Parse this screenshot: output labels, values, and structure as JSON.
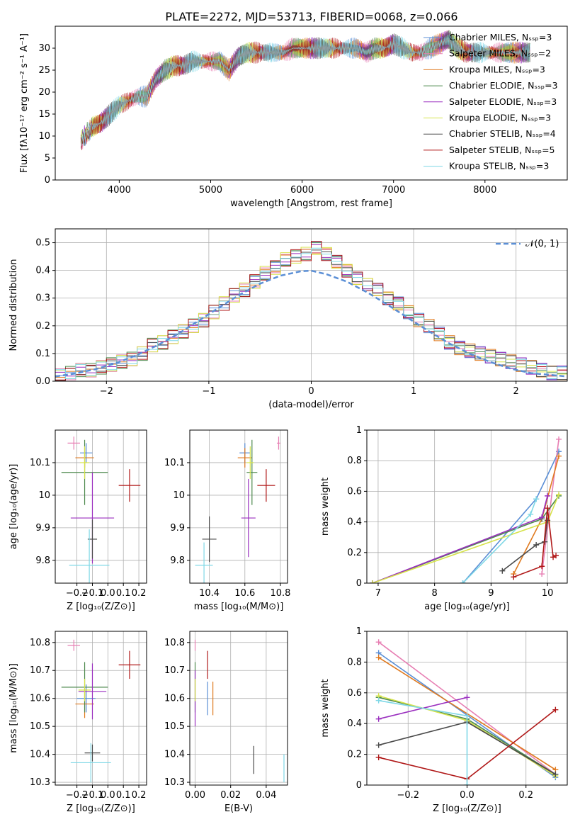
{
  "figure": {
    "title": "PLATE=2272, MJD=53713, FIBERID=0068, z=0.066"
  },
  "legend_models": [
    {
      "label": "Chabrier MILES, Nₛₛₚ=3",
      "color": "#5b8fd6"
    },
    {
      "label": "Salpeter MILES, Nₛₛₚ=2",
      "color": "#e77fb3"
    },
    {
      "label": "Kroupa MILES, Nₛₛₚ=3",
      "color": "#e07a1f"
    },
    {
      "label": "Chabrier ELODIE, Nₛₛₚ=3",
      "color": "#4e8a4e"
    },
    {
      "label": "Salpeter ELODIE, Nₛₛₚ=3",
      "color": "#9a2fbf"
    },
    {
      "label": "Kroupa ELODIE, Nₛₛₚ=3",
      "color": "#d6e34a"
    },
    {
      "label": "Chabrier STELIB, Nₛₛₚ=4",
      "color": "#4a4a4a"
    },
    {
      "label": "Salpeter STELIB, Nₛₛₚ=5",
      "color": "#b01818"
    },
    {
      "label": "Kroupa STELIB, Nₛₛₚ=3",
      "color": "#7fd8e6"
    }
  ],
  "chart_data": [
    {
      "type": "line",
      "panel": "spectrum",
      "xlabel": "wavelength [Angstrom, rest frame]",
      "ylabel": "Flux [fλ10⁻¹⁷ erg cm⁻² s⁻¹ A⁻¹]",
      "xlim": [
        3300,
        8900
      ],
      "ylim": [
        0,
        35
      ],
      "xticks": [
        4000,
        5000,
        6000,
        7000,
        8000
      ],
      "yticks": [
        0,
        5,
        10,
        15,
        20,
        25,
        30
      ],
      "x": [
        3580,
        3700,
        3800,
        3900,
        4000,
        4100,
        4200,
        4300,
        4400,
        4500,
        4600,
        4700,
        4800,
        4900,
        5000,
        5100,
        5200,
        5300,
        5400,
        5500,
        5600,
        5700,
        5800,
        5900,
        6000,
        6100,
        6200,
        6300,
        6400,
        6500,
        6600,
        6700,
        6800,
        6900,
        7000,
        7100,
        7200,
        7300,
        7400,
        7500,
        7600,
        7700,
        7800,
        7900,
        8000,
        8100,
        8200,
        8300,
        8400,
        8500
      ],
      "y": [
        9,
        12,
        13,
        15,
        17,
        18,
        19,
        19,
        23,
        25,
        26,
        26,
        27,
        27,
        27,
        27,
        25,
        28,
        29,
        29,
        29,
        29,
        29,
        30,
        30,
        30,
        30,
        30,
        30,
        30,
        30,
        29,
        30,
        30,
        31,
        30,
        29,
        29,
        30,
        31,
        32,
        30,
        29,
        29,
        29,
        29,
        29,
        29,
        29,
        29
      ],
      "grid": false,
      "legend_placement": "top-right"
    },
    {
      "type": "line",
      "panel": "residuals",
      "xlabel": "(data-model)/error",
      "ylabel": "Normed distribution",
      "xlim": [
        -2.5,
        2.5
      ],
      "ylim": [
        0,
        0.55
      ],
      "xticks": [
        -2,
        -1,
        0,
        1,
        2
      ],
      "xtick_labels": [
        "−2",
        "−1",
        "0",
        "1",
        "2"
      ],
      "yticks": [
        0,
        0.1,
        0.2,
        0.3,
        0.4,
        0.5
      ],
      "ytick_labels": [
        "0.0",
        "0.1",
        "0.2",
        "0.3",
        "0.4",
        "0.5"
      ],
      "series": [
        {
          "name": "1(0, 1)",
          "values": [
            0.017,
            0.028,
            0.044,
            0.066,
            0.095,
            0.13,
            0.171,
            0.218,
            0.266,
            0.312,
            0.352,
            0.381,
            0.397,
            0.399,
            0.386,
            0.359,
            0.32,
            0.275,
            0.227,
            0.18,
            0.136,
            0.099,
            0.069,
            0.045,
            0.029,
            0.017
          ]
        }
      ],
      "x": [
        -2.5,
        -2.3,
        -2.1,
        -1.9,
        -1.7,
        -1.5,
        -1.3,
        -1.1,
        -0.9,
        -0.7,
        -0.5,
        -0.3,
        -0.1,
        0.0,
        0.15,
        0.35,
        0.55,
        0.75,
        0.95,
        1.15,
        1.35,
        1.55,
        1.75,
        1.95,
        2.15,
        2.5
      ],
      "histogram_bins": [
        -2.5,
        -2.4,
        -2.3,
        -2.2,
        -2.1,
        -2.0,
        -1.9,
        -1.8,
        -1.7,
        -1.6,
        -1.5,
        -1.4,
        -1.3,
        -1.2,
        -1.1,
        -1.0,
        -0.9,
        -0.8,
        -0.7,
        -0.6,
        -0.5,
        -0.4,
        -0.3,
        -0.2,
        -0.1,
        0.0,
        0.1,
        0.2,
        0.3,
        0.4,
        0.5,
        0.6,
        0.7,
        0.8,
        0.9,
        1.0,
        1.1,
        1.2,
        1.3,
        1.4,
        1.5,
        1.6,
        1.7,
        1.8,
        1.9,
        2.0,
        2.1,
        2.2,
        2.3,
        2.4,
        2.5
      ],
      "histogram_values": [
        0.02,
        0.03,
        0.04,
        0.04,
        0.05,
        0.06,
        0.07,
        0.08,
        0.1,
        0.13,
        0.14,
        0.16,
        0.18,
        0.2,
        0.22,
        0.25,
        0.28,
        0.31,
        0.33,
        0.36,
        0.39,
        0.41,
        0.44,
        0.45,
        0.46,
        0.48,
        0.46,
        0.43,
        0.4,
        0.37,
        0.35,
        0.33,
        0.3,
        0.28,
        0.25,
        0.22,
        0.2,
        0.17,
        0.14,
        0.12,
        0.11,
        0.1,
        0.09,
        0.08,
        0.07,
        0.06,
        0.05,
        0.04,
        0.03,
        0.03
      ],
      "grid": true,
      "legend_placement": "top-right"
    },
    {
      "type": "scatter",
      "panel": "Z-vs-age",
      "xlabel": "Z [log₁₀(Z/Z⊙)]",
      "ylabel": "age  [log₁₀(age/yr)]",
      "xlim": [
        -0.34,
        0.25
      ],
      "ylim": [
        9.73,
        10.2
      ],
      "xticks": [
        -0.2,
        -0.1,
        0.0,
        0.1,
        0.2
      ],
      "xtick_labels": [
        "−0.2",
        "−0.1",
        "0.0",
        "0.1",
        "0.2"
      ],
      "yticks": [
        9.8,
        9.9,
        10.0,
        10.1
      ],
      "points": [
        {
          "x": -0.14,
          "y": 10.13,
          "xerr": 0.04,
          "yerr": 0.03,
          "c": 0
        },
        {
          "x": -0.22,
          "y": 10.16,
          "xerr": 0.04,
          "yerr": 0.02,
          "c": 1
        },
        {
          "x": -0.15,
          "y": 10.115,
          "xerr": 0.06,
          "yerr": 0.03,
          "c": 2
        },
        {
          "x": -0.15,
          "y": 10.07,
          "xerr": 0.15,
          "yerr": 0.1,
          "c": 3
        },
        {
          "x": -0.1,
          "y": 9.93,
          "xerr": 0.14,
          "yerr": 0.14,
          "c": 4
        },
        {
          "x": -0.15,
          "y": 10.1,
          "xerr": 0.03,
          "yerr": 0.05,
          "c": 5
        },
        {
          "x": -0.1,
          "y": 9.865,
          "xerr": 0.03,
          "yerr": 0.06,
          "c": 6
        },
        {
          "x": 0.14,
          "y": 10.03,
          "xerr": 0.07,
          "yerr": 0.05,
          "c": 7
        },
        {
          "x": -0.12,
          "y": 9.785,
          "xerr": 0.13,
          "yerr": 0.11,
          "c": 8
        }
      ],
      "grid": true
    },
    {
      "type": "scatter",
      "panel": "mass-vs-age",
      "xlabel": "mass [log₁₀(M/M⊙)]",
      "ylabel": "",
      "xlim": [
        10.29,
        10.84
      ],
      "ylim": [
        9.73,
        10.2
      ],
      "xticks": [
        10.4,
        10.6,
        10.8
      ],
      "yticks": [
        9.8,
        9.9,
        10.0,
        10.1
      ],
      "points": [
        {
          "x": 10.6,
          "y": 10.13,
          "xerr": 0.03,
          "yerr": 0.03,
          "c": 0
        },
        {
          "x": 10.79,
          "y": 10.16,
          "xerr": 0.01,
          "yerr": 0.02,
          "c": 1
        },
        {
          "x": 10.6,
          "y": 10.115,
          "xerr": 0.04,
          "yerr": 0.03,
          "c": 2
        },
        {
          "x": 10.64,
          "y": 10.07,
          "xerr": 0.03,
          "yerr": 0.1,
          "c": 3
        },
        {
          "x": 10.62,
          "y": 9.93,
          "xerr": 0.04,
          "yerr": 0.12,
          "c": 4
        },
        {
          "x": 10.63,
          "y": 10.1,
          "xerr": 0.02,
          "yerr": 0.05,
          "c": 5
        },
        {
          "x": 10.4,
          "y": 9.865,
          "xerr": 0.04,
          "yerr": 0.07,
          "c": 6
        },
        {
          "x": 10.72,
          "y": 10.03,
          "xerr": 0.05,
          "yerr": 0.05,
          "c": 7
        },
        {
          "x": 10.37,
          "y": 9.785,
          "xerr": 0.05,
          "yerr": 0.07,
          "c": 8
        }
      ],
      "grid": true
    },
    {
      "type": "line",
      "panel": "age-vs-weight",
      "xlabel": "age  [log₁₀(age/yr)]",
      "ylabel": "mass weight",
      "xlim": [
        6.8,
        10.35
      ],
      "ylim": [
        0,
        1
      ],
      "xticks": [
        7,
        8,
        9,
        10
      ],
      "yticks": [
        0,
        0.2,
        0.4,
        0.6,
        0.8,
        1.0
      ],
      "series": [
        {
          "name": "",
          "c": 0,
          "x": [
            8.5,
            9.8,
            10.2
          ],
          "y": [
            0.0,
            0.55,
            0.86
          ]
        },
        {
          "name": "",
          "c": 1,
          "x": [
            9.9,
            10.2
          ],
          "y": [
            0.06,
            0.94
          ]
        },
        {
          "name": "",
          "c": 2,
          "x": [
            9.4,
            9.9,
            10.2
          ],
          "y": [
            0.06,
            0.42,
            0.83
          ]
        },
        {
          "name": "",
          "c": 3,
          "x": [
            6.9,
            9.9,
            10.2
          ],
          "y": [
            0.0,
            0.42,
            0.57
          ]
        },
        {
          "name": "",
          "c": 4,
          "x": [
            6.9,
            9.9,
            10.0
          ],
          "y": [
            0.0,
            0.43,
            0.57
          ]
        },
        {
          "name": "",
          "c": 5,
          "x": [
            6.9,
            10.0,
            10.2
          ],
          "y": [
            0.0,
            0.4,
            0.58
          ]
        },
        {
          "name": "",
          "c": 6,
          "x": [
            9.2,
            9.8,
            9.95,
            10.0
          ],
          "y": [
            0.08,
            0.25,
            0.27,
            0.41
          ]
        },
        {
          "name": "",
          "c": 7,
          "x": [
            9.4,
            9.9,
            10.0,
            10.1,
            10.15
          ],
          "y": [
            0.04,
            0.11,
            0.49,
            0.17,
            0.18
          ]
        },
        {
          "name": "",
          "c": 8,
          "x": [
            8.5,
            9.7,
            9.8
          ],
          "y": [
            0.0,
            0.45,
            0.55
          ]
        }
      ],
      "grid": true
    },
    {
      "type": "scatter",
      "panel": "Z-vs-mass",
      "xlabel": "Z [log₁₀(Z/Z⊙)]",
      "ylabel": "mass [log₁₀(M/M⊙)]",
      "xlim": [
        -0.34,
        0.25
      ],
      "ylim": [
        10.29,
        10.84
      ],
      "xticks": [
        -0.2,
        -0.1,
        0.0,
        0.1,
        0.2
      ],
      "xtick_labels": [
        "−0.2",
        "−0.1",
        "0.0",
        "0.1",
        "0.2"
      ],
      "yticks": [
        10.3,
        10.4,
        10.5,
        10.6,
        10.7,
        10.8
      ],
      "points": [
        {
          "x": -0.14,
          "y": 10.6,
          "xerr": 0.06,
          "yerr": 0.05,
          "c": 0
        },
        {
          "x": -0.22,
          "y": 10.79,
          "xerr": 0.04,
          "yerr": 0.02,
          "c": 1
        },
        {
          "x": -0.15,
          "y": 10.58,
          "xerr": 0.06,
          "yerr": 0.05,
          "c": 2
        },
        {
          "x": -0.15,
          "y": 10.64,
          "xerr": 0.15,
          "yerr": 0.09,
          "c": 3
        },
        {
          "x": -0.1,
          "y": 10.625,
          "xerr": 0.09,
          "yerr": 0.1,
          "c": 4
        },
        {
          "x": -0.15,
          "y": 10.63,
          "xerr": 0.04,
          "yerr": 0.04,
          "c": 5
        },
        {
          "x": -0.1,
          "y": 10.405,
          "xerr": 0.05,
          "yerr": 0.03,
          "c": 6
        },
        {
          "x": 0.14,
          "y": 10.72,
          "xerr": 0.07,
          "yerr": 0.05,
          "c": 7
        },
        {
          "x": -0.11,
          "y": 10.37,
          "xerr": 0.13,
          "yerr": 0.07,
          "c": 8
        }
      ],
      "grid": true
    },
    {
      "type": "scatter",
      "panel": "EBV-vs-mass",
      "xlabel": "E(B-V)",
      "ylabel": "",
      "xlim": [
        -0.003,
        0.052
      ],
      "ylim": [
        10.29,
        10.84
      ],
      "xticks": [
        0.0,
        0.02,
        0.04
      ],
      "xtick_labels": [
        "0.00",
        "0.02",
        "0.04"
      ],
      "yticks": [
        10.3,
        10.4,
        10.5,
        10.6,
        10.7,
        10.8
      ],
      "points": [
        {
          "x": 0.007,
          "y": 10.6,
          "xerr": 0,
          "yerr": 0.06,
          "c": 0
        },
        {
          "x": 0.0,
          "y": 10.79,
          "xerr": 0,
          "yerr": 0.02,
          "c": 1
        },
        {
          "x": 0.01,
          "y": 10.6,
          "xerr": 0,
          "yerr": 0.06,
          "c": 2
        },
        {
          "x": 0.0,
          "y": 10.64,
          "xerr": 0,
          "yerr": 0.09,
          "c": 3
        },
        {
          "x": 0.0,
          "y": 10.6,
          "xerr": 0,
          "yerr": 0.1,
          "c": 4
        },
        {
          "x": 0.0,
          "y": 10.63,
          "xerr": 0,
          "yerr": 0.04,
          "c": 5
        },
        {
          "x": 0.033,
          "y": 10.38,
          "xerr": 0,
          "yerr": 0.05,
          "c": 6
        },
        {
          "x": 0.007,
          "y": 10.72,
          "xerr": 0,
          "yerr": 0.05,
          "c": 7
        },
        {
          "x": 0.05,
          "y": 10.35,
          "xerr": 0,
          "yerr": 0.05,
          "c": 8
        }
      ],
      "grid": true
    },
    {
      "type": "line",
      "panel": "Z-vs-weight",
      "xlabel": "Z [log₁₀(Z/Z⊙)]",
      "ylabel": "mass weight",
      "xlim": [
        -0.34,
        0.34
      ],
      "ylim": [
        0,
        1
      ],
      "xticks": [
        -0.2,
        0.0,
        0.2
      ],
      "xtick_labels": [
        "−0.2",
        "0.0",
        "0.2"
      ],
      "yticks": [
        0,
        0.2,
        0.4,
        0.6,
        0.8,
        1.0
      ],
      "series": [
        {
          "name": "",
          "c": 0,
          "x": [
            -0.3,
            0.3
          ],
          "y": [
            0.86,
            0.05
          ]
        },
        {
          "name": "",
          "c": 1,
          "x": [
            -0.3,
            0.3
          ],
          "y": [
            0.93,
            0.07
          ]
        },
        {
          "name": "",
          "c": 2,
          "x": [
            -0.3,
            0.3
          ],
          "y": [
            0.83,
            0.1
          ]
        },
        {
          "name": "",
          "c": 3,
          "x": [
            -0.3,
            0.0,
            0.3
          ],
          "y": [
            0.57,
            0.43,
            0.07
          ]
        },
        {
          "name": "",
          "c": 4,
          "x": [
            -0.3,
            0.0
          ],
          "y": [
            0.43,
            0.57
          ]
        },
        {
          "name": "",
          "c": 5,
          "x": [
            -0.3,
            0.0,
            0.3
          ],
          "y": [
            0.58,
            0.42,
            0.06
          ]
        },
        {
          "name": "",
          "c": 6,
          "x": [
            -0.3,
            0.0,
            0.3
          ],
          "y": [
            0.26,
            0.41,
            0.07
          ]
        },
        {
          "name": "",
          "c": 7,
          "x": [
            -0.3,
            0.0,
            0.3
          ],
          "y": [
            0.18,
            0.04,
            0.49
          ]
        },
        {
          "name": "",
          "c": 8,
          "x": [
            -0.3,
            0.0,
            0.0
          ],
          "y": [
            0.55,
            0.45,
            0.0
          ]
        }
      ],
      "grid": true
    }
  ]
}
